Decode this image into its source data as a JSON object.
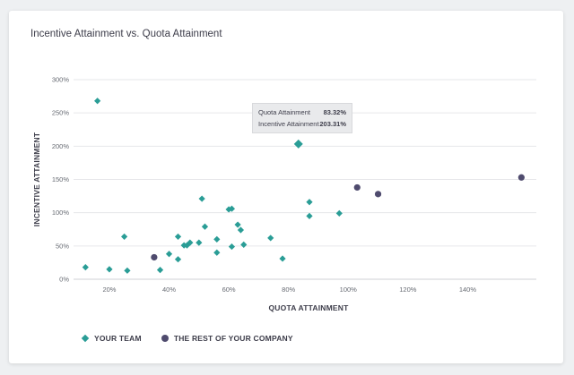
{
  "card": {
    "title": "Incentive Attainment vs. Quota Attainment"
  },
  "chart_data": {
    "type": "scatter",
    "title": "Incentive Attainment vs. Quota Attainment",
    "xlabel": "QUOTA ATTAINMENT",
    "ylabel": "INCENTIVE ATTAINMENT",
    "xlim": [
      8,
      163
    ],
    "ylim": [
      0,
      300
    ],
    "x_ticks": [
      20,
      40,
      60,
      80,
      100,
      120,
      140
    ],
    "x_tick_labels": [
      "20%",
      "40%",
      "60%",
      "80%",
      "100%",
      "120%",
      "140%"
    ],
    "y_ticks": [
      0,
      50,
      100,
      150,
      200,
      250,
      300
    ],
    "y_tick_labels": [
      "0%",
      "50%",
      "100%",
      "150%",
      "200%",
      "250%",
      "300%"
    ],
    "grid": {
      "horizontal": true,
      "vertical": false
    },
    "legend_position": "bottom-left",
    "series": [
      {
        "name": "YOUR TEAM",
        "marker": "diamond",
        "color": "#2a9d96",
        "points": [
          [
            12,
            18
          ],
          [
            16,
            268
          ],
          [
            20,
            15
          ],
          [
            25,
            64
          ],
          [
            26,
            13
          ],
          [
            35,
            33
          ],
          [
            37,
            14
          ],
          [
            40,
            38
          ],
          [
            43,
            64
          ],
          [
            43,
            30
          ],
          [
            45,
            51
          ],
          [
            46,
            51
          ],
          [
            47,
            55
          ],
          [
            50,
            55
          ],
          [
            51,
            121
          ],
          [
            52,
            79
          ],
          [
            56,
            60
          ],
          [
            56,
            40
          ],
          [
            60,
            105
          ],
          [
            61,
            106
          ],
          [
            61,
            49
          ],
          [
            63,
            82
          ],
          [
            64,
            74
          ],
          [
            65,
            52
          ],
          [
            74,
            62
          ],
          [
            78,
            31
          ],
          [
            83.32,
            203.31
          ],
          [
            87,
            116
          ],
          [
            87,
            95
          ],
          [
            97,
            99
          ]
        ]
      },
      {
        "name": "THE REST OF YOUR COMPANY",
        "marker": "circle",
        "color": "#4f4b6e",
        "points": [
          [
            35,
            33
          ],
          [
            103,
            138
          ],
          [
            110,
            128
          ],
          [
            158,
            153
          ]
        ]
      }
    ],
    "tooltip": {
      "rows": [
        {
          "label": "Quota Attainment",
          "value": "83.32%"
        },
        {
          "label": "Incentive Attainment",
          "value": "203.31%"
        }
      ]
    }
  }
}
